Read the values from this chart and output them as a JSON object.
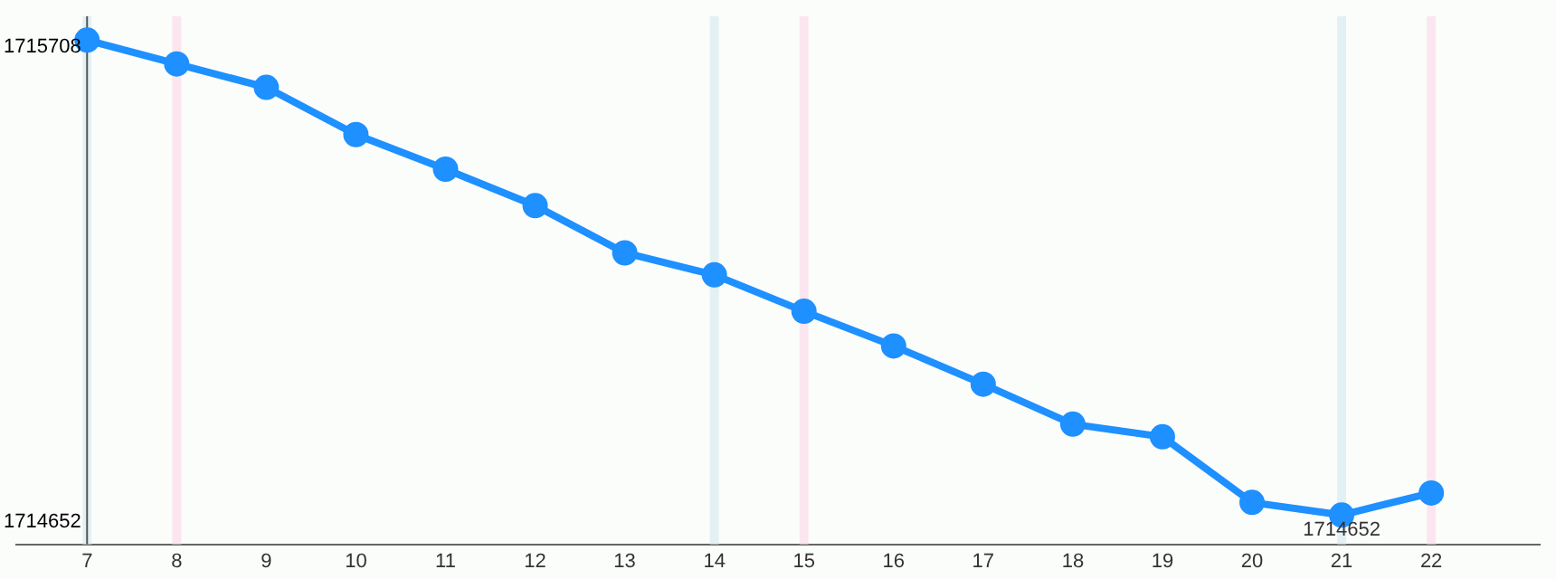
{
  "chart_data": {
    "type": "line",
    "x": [
      7,
      8,
      9,
      10,
      11,
      12,
      13,
      14,
      15,
      16,
      17,
      18,
      19,
      20,
      21,
      22
    ],
    "series": [
      {
        "color": "#1e90ff",
        "values": [
          1715708,
          1715655,
          1715603,
          1715498,
          1715421,
          1715340,
          1715235,
          1715186,
          1715105,
          1715028,
          1714943,
          1714854,
          1714826,
          1714680,
          1714652,
          1714701
        ]
      }
    ],
    "xlim": [
      6.21,
      23.21
    ],
    "xticks": [
      7,
      8,
      9,
      10,
      11,
      12,
      13,
      14,
      15,
      16,
      17,
      18,
      19,
      20,
      21,
      22
    ],
    "ylim": [
      1714587,
      1715761
    ],
    "yticks": [
      1714652,
      1715708
    ],
    "bands": [
      {
        "axis": "x",
        "from": 6.95,
        "to": 7.05,
        "color": "#e3f0f4"
      },
      {
        "axis": "x",
        "from": 7.95,
        "to": 8.05,
        "color": "#fbe6f0"
      },
      {
        "axis": "x",
        "from": 13.95,
        "to": 14.05,
        "color": "#e3f0f4"
      },
      {
        "axis": "x",
        "from": 14.95,
        "to": 15.05,
        "color": "#fbe6f0"
      },
      {
        "axis": "x",
        "from": 20.95,
        "to": 21.05,
        "color": "#e3f0f4"
      },
      {
        "axis": "x",
        "from": 21.95,
        "to": 22.05,
        "color": "#fbe6f0"
      }
    ],
    "annotations": [
      {
        "text": "1714652",
        "x": 21,
        "y": 1714652
      }
    ],
    "grid": false,
    "legend": false,
    "marker": "circle",
    "line_style": "solid"
  }
}
